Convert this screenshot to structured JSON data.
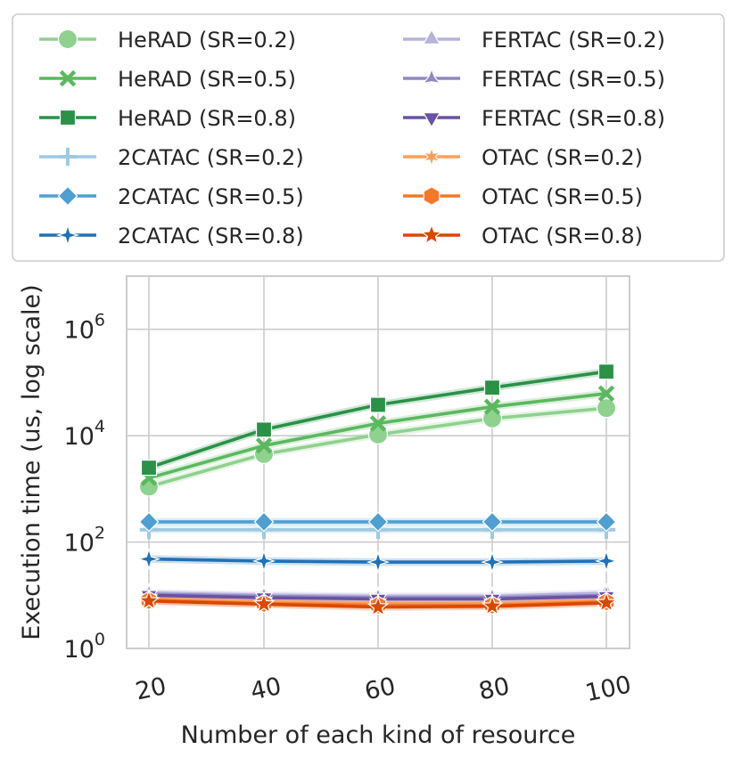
{
  "chart_data": {
    "type": "line",
    "title": "",
    "xlabel": "Number of each kind of resource",
    "ylabel": "Execution time (us, log scale)",
    "yscale": "log",
    "ylim": [
      1,
      10000000
    ],
    "x": [
      20,
      40,
      60,
      80,
      100
    ],
    "x_tick_labels": [
      "20",
      "40",
      "60",
      "80",
      "100"
    ],
    "y_ticks": [
      {
        "value": 1,
        "base": "10",
        "exp": "0"
      },
      {
        "value": 100,
        "base": "10",
        "exp": "2"
      },
      {
        "value": 10000,
        "base": "10",
        "exp": "4"
      },
      {
        "value": 1000000,
        "base": "10",
        "exp": "6"
      }
    ],
    "grid": true,
    "legend_position": "top",
    "series": [
      {
        "name": "HeRAD (SR=0.2)",
        "color": "#8fd18f",
        "marker": "circle",
        "values": [
          1100,
          4500,
          10500,
          21000,
          33000
        ]
      },
      {
        "name": "HeRAD (SR=0.5)",
        "color": "#5bb85f",
        "marker": "x",
        "values": [
          1600,
          6500,
          17000,
          35000,
          62000
        ]
      },
      {
        "name": "HeRAD (SR=0.8)",
        "color": "#2a9147",
        "marker": "square",
        "values": [
          2500,
          13000,
          38000,
          80000,
          160000
        ]
      },
      {
        "name": "2CATAC (SR=0.2)",
        "color": "#9ecae1",
        "marker": "plus",
        "values": [
          170,
          170,
          170,
          170,
          170
        ]
      },
      {
        "name": "2CATAC (SR=0.5)",
        "color": "#4f9fd0",
        "marker": "diamond",
        "values": [
          240,
          240,
          240,
          240,
          240
        ]
      },
      {
        "name": "2CATAC (SR=0.8)",
        "color": "#2171b5",
        "marker": "thin-diamond",
        "values": [
          48,
          44,
          42,
          42,
          44
        ]
      },
      {
        "name": "FERTAC (SR=0.2)",
        "color": "#b3b3dc",
        "marker": "triangle-up",
        "values": [
          11,
          10,
          9.5,
          9.5,
          11
        ]
      },
      {
        "name": "FERTAC (SR=0.5)",
        "color": "#9088c3",
        "marker": "tri-star",
        "values": [
          10.5,
          9.5,
          9,
          9,
          10
        ]
      },
      {
        "name": "FERTAC (SR=0.8)",
        "color": "#6a51a3",
        "marker": "triangle-down",
        "values": [
          10,
          9,
          8.5,
          8.5,
          9.5
        ]
      },
      {
        "name": "OTAC (SR=0.2)",
        "color": "#fd9f5a",
        "marker": "asterisk",
        "values": [
          8.5,
          7.5,
          7,
          7,
          8
        ]
      },
      {
        "name": "OTAC (SR=0.5)",
        "color": "#f4782a",
        "marker": "hexagon",
        "values": [
          8,
          7,
          6.5,
          6.5,
          7.5
        ]
      },
      {
        "name": "OTAC (SR=0.8)",
        "color": "#d94801",
        "marker": "star",
        "values": [
          7.8,
          6.8,
          6,
          6.2,
          7.2
        ]
      }
    ]
  }
}
